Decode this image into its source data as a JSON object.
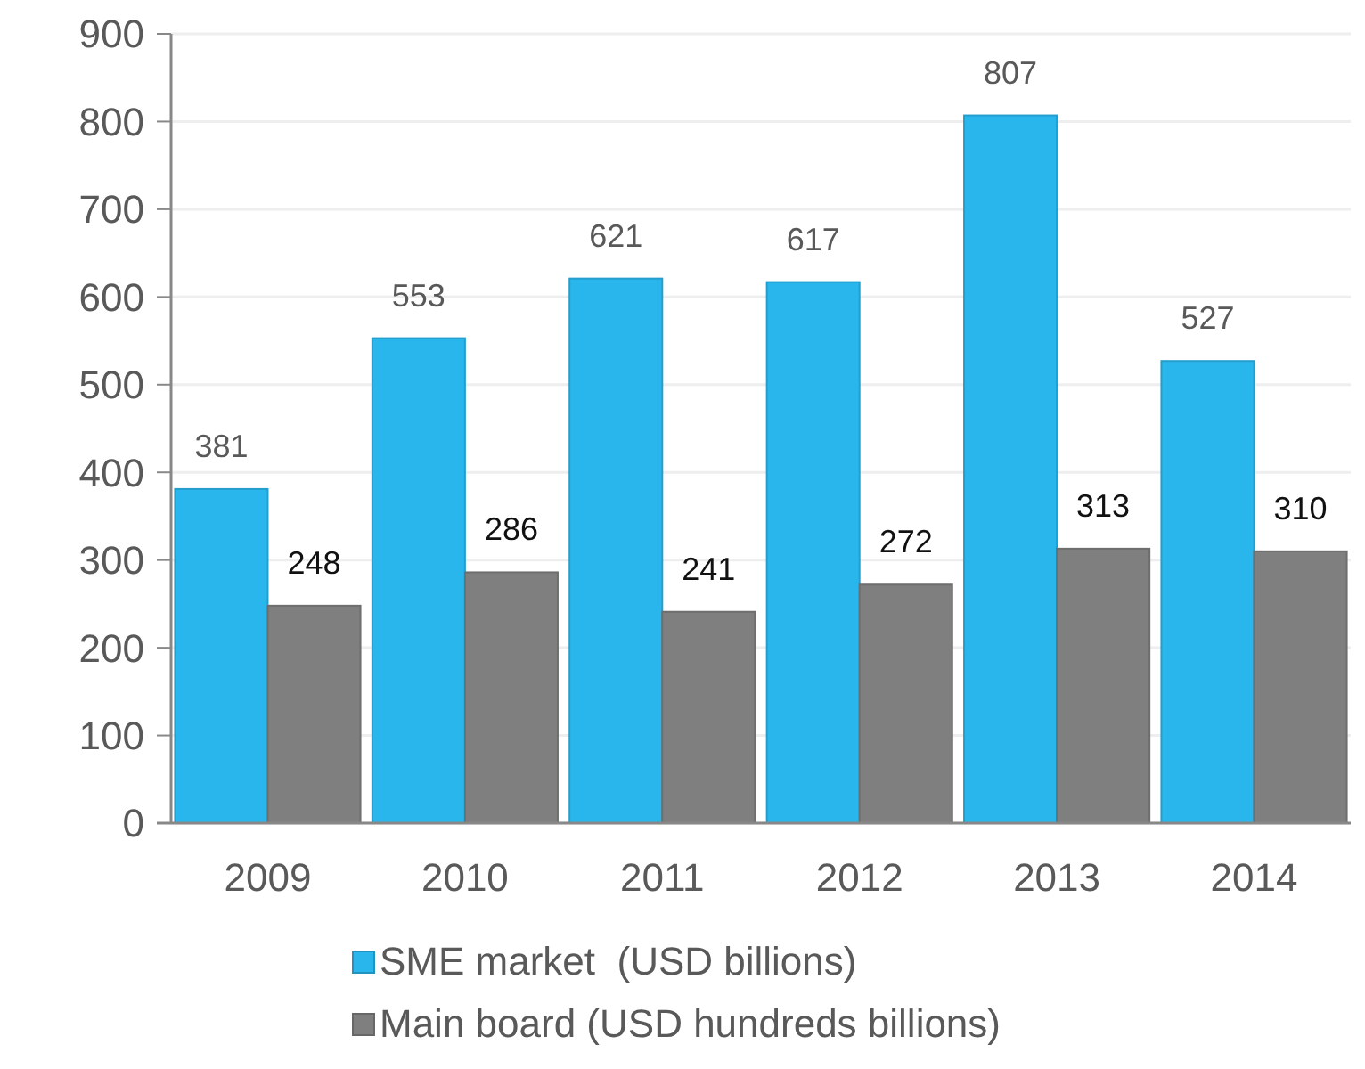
{
  "chart_data": {
    "type": "bar",
    "categories": [
      "2009",
      "2010",
      "2011",
      "2012",
      "2013",
      "2014"
    ],
    "series": [
      {
        "name": "SME market  (USD billions)",
        "color": "#29b6ec",
        "values": [
          381,
          553,
          621,
          617,
          807,
          527
        ]
      },
      {
        "name": "Main board (USD hundreds billions)",
        "color": "#7f7f7f",
        "values": [
          248,
          286,
          241,
          272,
          313,
          310
        ]
      }
    ],
    "ylim": [
      0,
      900
    ],
    "yticks": [
      0,
      100,
      200,
      300,
      400,
      500,
      600,
      700,
      800,
      900
    ],
    "grid": "y",
    "legend": "bottom",
    "data_labels": true
  }
}
